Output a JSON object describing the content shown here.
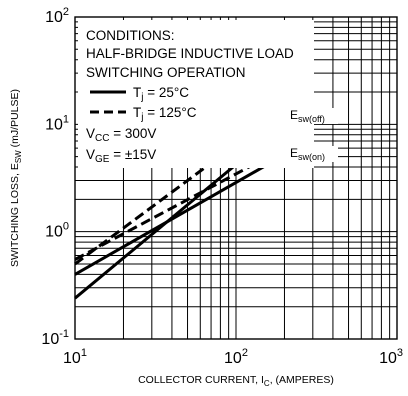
{
  "chart_data": {
    "type": "line",
    "xlabel": "COLLECTOR CURRENT, I",
    "xlabel_sub": "C",
    "xlabel_suffix": ", (AMPERES)",
    "ylabel": "SWITCHING LOSS, E",
    "ylabel_sub": "SW",
    "ylabel_suffix": " (mJ/PULSE)",
    "x_scale": "log",
    "y_scale": "log",
    "xlim": [
      10,
      1000
    ],
    "ylim": [
      0.1,
      100
    ],
    "grid": true,
    "x_ticks": [
      {
        "value": 10,
        "base": "10",
        "exp": "1"
      },
      {
        "value": 100,
        "base": "10",
        "exp": "2"
      },
      {
        "value": 1000,
        "base": "10",
        "exp": "3"
      }
    ],
    "y_ticks": [
      {
        "value": 0.1,
        "base": "10",
        "exp": "-1"
      },
      {
        "value": 1,
        "base": "10",
        "exp": "0"
      },
      {
        "value": 10,
        "base": "10",
        "exp": "1"
      },
      {
        "value": 100,
        "base": "10",
        "exp": "2"
      }
    ],
    "annotations": {
      "conditions": "CONDITIONS:",
      "load": "HALF-BRIDGE INDUCTIVE LOAD",
      "operation": "SWITCHING OPERATION",
      "legend_solid_main": "T",
      "legend_solid_sub": "j",
      "legend_solid_suffix": " = 25°C",
      "legend_dashed_main": "T",
      "legend_dashed_sub": "j",
      "legend_dashed_suffix": " = 125°C",
      "vcc_main": "V",
      "vcc_sub": "CC",
      "vcc_suffix": " = 300V",
      "vge_main": "V",
      "vge_sub": "GE",
      "vge_suffix": " = ±15V"
    },
    "series_labels": {
      "off_main": "E",
      "off_sub": "sw(off)",
      "on_main": "E",
      "on_sub": "sw(on)"
    },
    "series": [
      {
        "curve": "E_sw(off)",
        "condition": "Tj = 25°C",
        "style": "solid",
        "x": [
          10,
          200
        ],
        "y": [
          0.24,
          10
        ]
      },
      {
        "curve": "E_sw(on)",
        "condition": "Tj = 25°C",
        "style": "solid",
        "x": [
          10,
          200
        ],
        "y": [
          0.4,
          5.2
        ]
      },
      {
        "curve": "E_sw(off)",
        "condition": "Tj = 125°C",
        "style": "dashed",
        "x": [
          10,
          200
        ],
        "y": [
          0.5,
          14
        ]
      },
      {
        "curve": "E_sw(on)",
        "condition": "Tj = 125°C",
        "style": "dashed",
        "x": [
          10,
          200
        ],
        "y": [
          0.55,
          6
        ]
      }
    ]
  }
}
